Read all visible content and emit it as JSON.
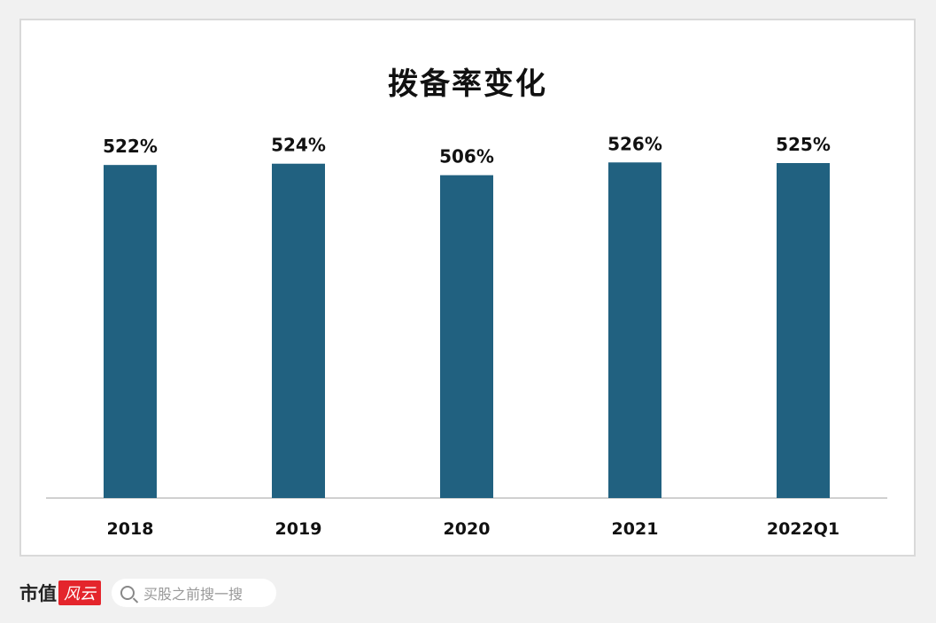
{
  "chart_data": {
    "type": "bar",
    "title": "拨备率变化",
    "categories": [
      "2018",
      "2019",
      "2020",
      "2021",
      "2022Q1"
    ],
    "values": [
      522,
      524,
      506,
      526,
      525
    ],
    "data_labels": [
      "522%",
      "524%",
      "506%",
      "526%",
      "525%"
    ],
    "unit": "%",
    "ylim": [
      0,
      600
    ],
    "grid": false,
    "legend": "none",
    "bar_color": "#216180",
    "xlabel": "",
    "ylabel": ""
  },
  "footer": {
    "logo_text": "市值",
    "logo_badge": "风云",
    "search_placeholder": "买股之前搜一搜"
  }
}
